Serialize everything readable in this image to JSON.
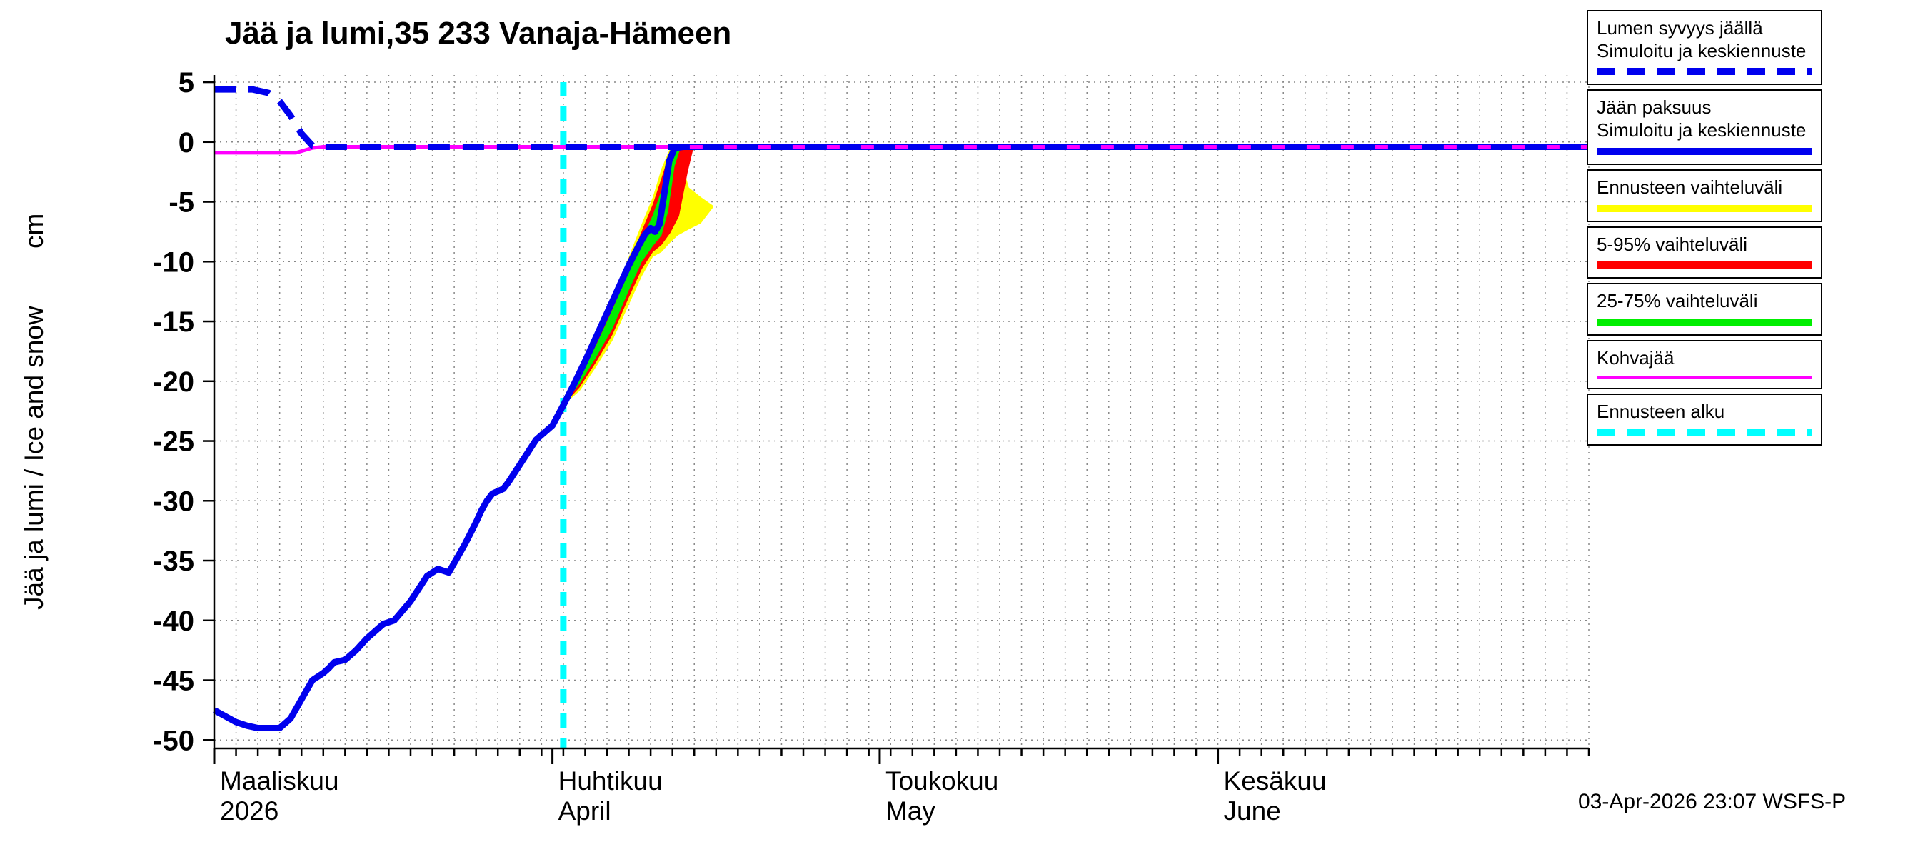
{
  "title": "Jää ja lumi,35 233 Vanaja-Hämeen",
  "y_axis": {
    "label": "Jää ja lumi / Ice and snow",
    "unit": "cm"
  },
  "footer": "03-Apr-2026 23:07 WSFS-P",
  "legend": {
    "items": [
      {
        "id": "lumen-syvyys",
        "label_lines": [
          "Lumen syvyys jäällä",
          "Simuloitu ja keskiennuste"
        ],
        "swatch": "dashed",
        "color": "#0000ee",
        "thickness": 10
      },
      {
        "id": "jaan-paksuus",
        "label_lines": [
          "Jään paksuus",
          "Simuloitu ja keskiennuste"
        ],
        "swatch": "solid",
        "color": "#0000ee",
        "thickness": 10
      },
      {
        "id": "ennusteen-vaihteluvali",
        "label_lines": [
          "Ennusteen vaihteluväli"
        ],
        "swatch": "solid",
        "color": "#ffff00",
        "thickness": 10
      },
      {
        "id": "vaihteluvali-5-95",
        "label_lines": [
          "5-95% vaihteluväli"
        ],
        "swatch": "solid",
        "color": "#ff0000",
        "thickness": 10
      },
      {
        "id": "vaihteluvali-25-75",
        "label_lines": [
          "25-75% vaihteluväli"
        ],
        "swatch": "solid",
        "color": "#00ee00",
        "thickness": 10
      },
      {
        "id": "kohvajaa",
        "label_lines": [
          "Kohvajää"
        ],
        "swatch": "solid",
        "color": "#ff00ff",
        "thickness": 5
      },
      {
        "id": "ennusteen-alku",
        "label_lines": [
          "Ennusteen alku"
        ],
        "swatch": "dashed",
        "color": "#00ffff",
        "thickness": 10
      }
    ]
  },
  "chart_data": {
    "type": "line",
    "title": "Jää ja lumi,35 233 Vanaja-Hämeen",
    "ylabel": "Jää ja lumi / Ice and snow (cm)",
    "x_unit": "days since 2026-03-01",
    "xlim": [
      0,
      126
    ],
    "ylim": [
      -50.7,
      5.6
    ],
    "y_ticks": [
      5,
      0,
      -5,
      -10,
      -15,
      -20,
      -25,
      -30,
      -35,
      -40,
      -45,
      -50
    ],
    "x_grid_step": 2,
    "x_tick_step": 2,
    "grid": true,
    "legend_position": "right",
    "months": [
      {
        "day": 0,
        "fi": "Maaliskuu",
        "en": "2026"
      },
      {
        "day": 31,
        "fi": "Huhtikuu",
        "en": "April"
      },
      {
        "day": 61,
        "fi": "Toukokuu",
        "en": "May"
      },
      {
        "day": 92,
        "fi": "Kesäkuu",
        "en": "June"
      }
    ],
    "forecast_start_day": 32,
    "forecast_line_color": "#00ffff",
    "bands": [
      {
        "id": "ennusteen-vaihteluvali",
        "color": "#ffff00",
        "x": [
          32,
          33.5,
          35,
          36.5,
          38,
          39.2,
          40.2,
          41,
          41.8,
          42.5,
          43.5,
          44.6,
          45.7
        ],
        "lo": [
          -22,
          -20.8,
          -18.8,
          -16.6,
          -13.6,
          -11.2,
          -9.6,
          -9.2,
          -8.4,
          -7.8,
          -7.3,
          -6.8,
          -5.5
        ],
        "hi": [
          -22,
          -19.0,
          -16.2,
          -13.0,
          -9.6,
          -6.8,
          -4.6,
          -2.2,
          -0.5,
          -0.5,
          -3.8,
          -4.6,
          -5.3
        ]
      },
      {
        "id": "vaihteluvali-5-95",
        "color": "#ff0000",
        "x": [
          32,
          33.5,
          35,
          36.5,
          38,
          39.2,
          40.2,
          41,
          41.8,
          42.6,
          43.4,
          43.9
        ],
        "lo": [
          -22,
          -20.5,
          -18.4,
          -16.1,
          -13.0,
          -10.6,
          -9.2,
          -8.6,
          -7.6,
          -6.2,
          -2.5,
          -0.6
        ],
        "hi": [
          -22,
          -19.3,
          -16.6,
          -13.5,
          -10.2,
          -7.4,
          -5.2,
          -3.0,
          -0.7,
          -0.5,
          -0.5,
          -0.5
        ]
      },
      {
        "id": "vaihteluvali-25-75",
        "color": "#00ee00",
        "x": [
          32,
          33.5,
          35,
          36.5,
          38,
          39.2,
          40.2,
          41,
          41.6,
          42.2,
          42.7
        ],
        "lo": [
          -22,
          -20.2,
          -18.0,
          -15.6,
          -12.4,
          -10.0,
          -8.7,
          -7.8,
          -5.8,
          -2.0,
          -0.6
        ],
        "hi": [
          -22,
          -19.6,
          -17.0,
          -14.0,
          -10.8,
          -8.1,
          -6.1,
          -4.0,
          -1.5,
          -0.6,
          -0.5
        ]
      }
    ],
    "series": [
      {
        "id": "jaan-paksuus",
        "name": "Jään paksuus, simuloitu ja keskiennuste",
        "style": "solid",
        "color": "#0000ee",
        "width": 9,
        "points": [
          [
            0,
            -47.5
          ],
          [
            1,
            -48.0
          ],
          [
            2,
            -48.5
          ],
          [
            3,
            -48.8
          ],
          [
            4,
            -49.0
          ],
          [
            6,
            -49.0
          ],
          [
            7,
            -48.2
          ],
          [
            8,
            -46.6
          ],
          [
            9,
            -45.0
          ],
          [
            10,
            -44.4
          ],
          [
            10.5,
            -44.0
          ],
          [
            11,
            -43.5
          ],
          [
            12,
            -43.3
          ],
          [
            13,
            -42.5
          ],
          [
            14,
            -41.5
          ],
          [
            15,
            -40.7
          ],
          [
            15.5,
            -40.3
          ],
          [
            16.5,
            -40.0
          ],
          [
            18,
            -38.4
          ],
          [
            19,
            -37.0
          ],
          [
            19.5,
            -36.3
          ],
          [
            20.5,
            -35.7
          ],
          [
            21.5,
            -36.0
          ],
          [
            22,
            -35.2
          ],
          [
            23,
            -33.6
          ],
          [
            24,
            -31.8
          ],
          [
            24.5,
            -30.8
          ],
          [
            25,
            -30.0
          ],
          [
            25.5,
            -29.4
          ],
          [
            26.5,
            -29.0
          ],
          [
            27,
            -28.4
          ],
          [
            28,
            -27.0
          ],
          [
            29,
            -25.6
          ],
          [
            29.5,
            -24.9
          ],
          [
            30.5,
            -24.1
          ],
          [
            31,
            -23.7
          ],
          [
            32,
            -22.0
          ],
          [
            33,
            -20.2
          ],
          [
            34,
            -18.3
          ],
          [
            35,
            -16.3
          ],
          [
            36,
            -14.3
          ],
          [
            37,
            -12.3
          ],
          [
            38,
            -10.3
          ],
          [
            39,
            -8.5
          ],
          [
            39.5,
            -7.7
          ],
          [
            40,
            -7.2
          ],
          [
            40.4,
            -7.5
          ],
          [
            40.8,
            -6.9
          ],
          [
            41.2,
            -4.6
          ],
          [
            41.7,
            -1.6
          ],
          [
            42.2,
            -0.5
          ],
          [
            43,
            -0.4
          ],
          [
            126,
            -0.4
          ]
        ]
      },
      {
        "id": "kohvajaa",
        "name": "Kohvajää",
        "style": "solid",
        "color": "#ff00ff",
        "width": 5,
        "points": [
          [
            0,
            -0.9
          ],
          [
            7.5,
            -0.9
          ],
          [
            9,
            -0.5
          ],
          [
            10,
            -0.4
          ],
          [
            126,
            -0.4
          ]
        ]
      },
      {
        "id": "lumen-syvyys",
        "name": "Lumen syvyys jäällä, simuloitu ja keskiennuste",
        "style": "dashed",
        "color": "#0000ee",
        "width": 9,
        "points": [
          [
            0,
            4.4
          ],
          [
            3.5,
            4.4
          ],
          [
            5,
            4.1
          ],
          [
            6,
            3.4
          ],
          [
            7,
            2.2
          ],
          [
            8,
            0.7
          ],
          [
            9,
            -0.3
          ],
          [
            10,
            -0.4
          ],
          [
            126,
            -0.4
          ]
        ]
      }
    ]
  }
}
